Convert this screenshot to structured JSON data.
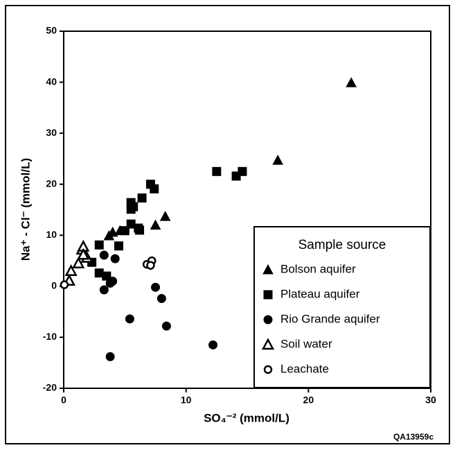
{
  "chart_data": {
    "type": "scatter",
    "xlabel": "SO₄⁻² (mmol/L)",
    "ylabel": "Na⁺ - Cl⁻ (mmol/L)",
    "annotation": "QA13959c",
    "legend_title": "Sample source",
    "legend": "lower right",
    "xlim": [
      0,
      30
    ],
    "xticks": [
      0,
      10,
      20,
      30
    ],
    "ylim": [
      -20,
      50
    ],
    "yticks": [
      -20,
      -10,
      0,
      10,
      20,
      30,
      40,
      50
    ],
    "grid": false,
    "series": [
      {
        "name": "Bolson aquifer",
        "color": "#000000",
        "marker": "triangle",
        "filled": true,
        "x": [
          23.5,
          17.5,
          8.3,
          7.5,
          3.7,
          4.0,
          4.6
        ],
        "values": [
          39.9,
          24.7,
          13.7,
          12.0,
          9.9,
          10.6,
          10.9
        ]
      },
      {
        "name": "Plateau aquifer",
        "color": "#000000",
        "marker": "square",
        "filled": true,
        "x": [
          12.5,
          14.1,
          14.6,
          7.1,
          7.4,
          6.4,
          5.5,
          5.7,
          5.5,
          5.5,
          6.1,
          6.2,
          5.0,
          4.5,
          2.9,
          2.3,
          2.9,
          3.5
        ],
        "values": [
          22.5,
          21.6,
          22.5,
          20.0,
          19.1,
          17.3,
          16.4,
          15.6,
          15.1,
          12.2,
          11.4,
          11.0,
          10.9,
          7.9,
          8.1,
          4.7,
          2.6,
          2.0
        ]
      },
      {
        "name": "Rio Grande aquifer",
        "color": "#000000",
        "marker": "circle",
        "filled": true,
        "x": [
          3.3,
          4.2,
          4.0,
          3.8,
          3.3,
          7.5,
          8.0,
          5.4,
          8.4,
          12.2,
          3.8
        ],
        "values": [
          6.1,
          5.4,
          1.0,
          0.6,
          -0.7,
          -0.2,
          -2.4,
          -6.4,
          -7.8,
          -11.5,
          -13.8
        ]
      },
      {
        "name": "Soil water",
        "color": "#000000",
        "marker": "triangle",
        "filled": false,
        "x": [
          0.45,
          0.6,
          1.2,
          1.5,
          1.6,
          1.9,
          1.6
        ],
        "values": [
          1.1,
          3.0,
          4.5,
          7.2,
          7.8,
          5.6,
          6.2
        ]
      },
      {
        "name": "Leachate",
        "color": "#000000",
        "marker": "circle",
        "filled": false,
        "x": [
          0.05,
          6.8,
          7.2,
          7.1
        ],
        "values": [
          0.3,
          4.3,
          5.0,
          4.1
        ]
      }
    ]
  }
}
